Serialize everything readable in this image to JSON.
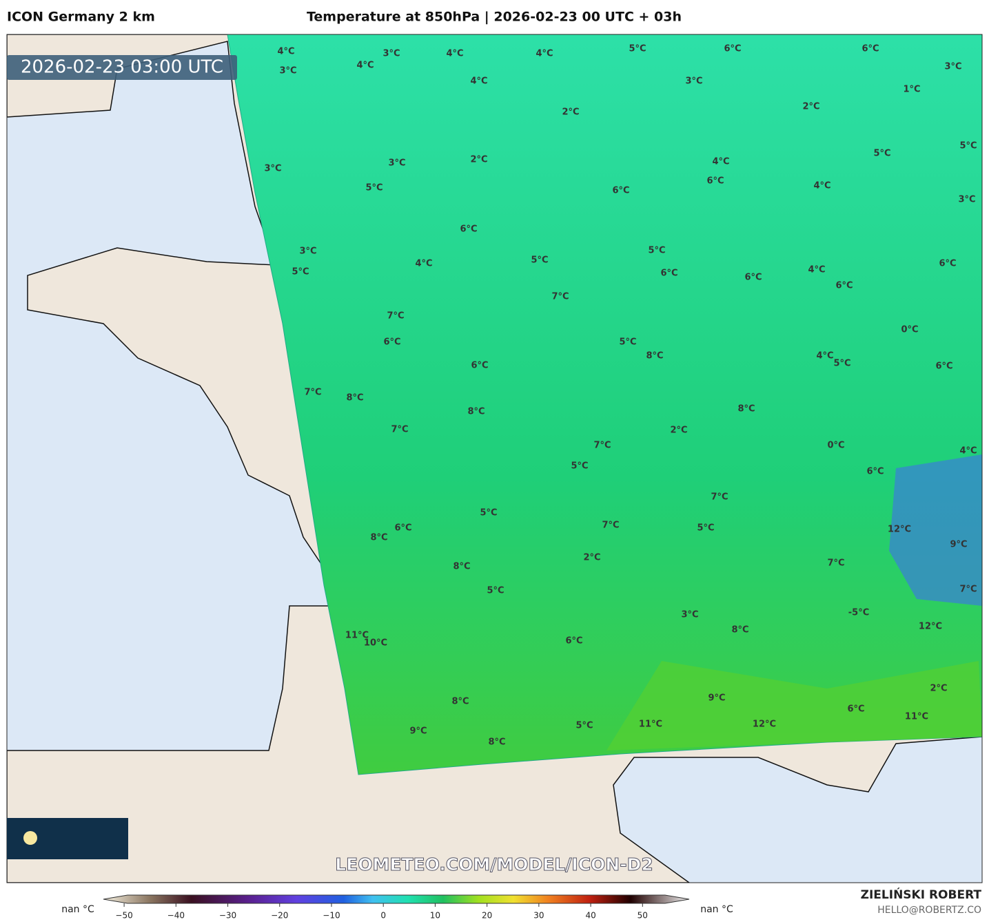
{
  "header": {
    "model": "ICON Germany 2 km",
    "title": "Temperature at 850hPa | 2026-02-23 00 UTC + 03h"
  },
  "timestamp": "2026-02-23 03:00 UTC",
  "watermark": "LEOMETEO.COM/MODEL/ICON-D2",
  "map_labels": [
    "4°C",
    "3°C",
    "4°C",
    "4°C",
    "5°C",
    "6°C",
    "6°C",
    "4°C",
    "3°C",
    "4°C",
    "3°C",
    "3°C",
    "1°C",
    "2°C",
    "2°C",
    "5°C",
    "5°C",
    "3°C",
    "3°C",
    "2°C",
    "4°C",
    "6°C",
    "5°C",
    "6°C",
    "4°C",
    "3°C",
    "6°C",
    "3°C",
    "5°C",
    "4°C",
    "5°C",
    "6°C",
    "5°C",
    "6°C",
    "6°C",
    "4°C",
    "6°C",
    "7°C",
    "7°C",
    "0°C",
    "6°C",
    "5°C",
    "8°C",
    "4°C",
    "5°C",
    "6°C",
    "6°C",
    "7°C",
    "8°C",
    "8°C",
    "8°C",
    "7°C",
    "2°C",
    "0°C",
    "7°C",
    "4°C",
    "5°C",
    "6°C",
    "7°C",
    "5°C",
    "7°C",
    "5°C",
    "12°C",
    "6°C",
    "8°C",
    "9°C",
    "2°C",
    "7°C",
    "8°C",
    "7°C",
    "5°C",
    "3°C",
    "-5°C",
    "12°C",
    "8°C",
    "11°C",
    "10°C",
    "6°C",
    "2°C",
    "9°C",
    "8°C",
    "6°C",
    "11°C",
    "11°C",
    "12°C",
    "5°C",
    "9°C",
    "8°C"
  ],
  "colorbar": {
    "lim": [
      -54,
      59
    ],
    "ticks": [
      {
        "value": -50,
        "label": "−50"
      },
      {
        "value": -40,
        "label": "−40"
      },
      {
        "value": -30,
        "label": "−30"
      },
      {
        "value": -20,
        "label": "−20"
      },
      {
        "value": -10,
        "label": "−10"
      },
      0,
      10,
      20,
      30,
      40,
      50
    ],
    "nan_left": "nan °C",
    "nan_right": "nan °C"
  },
  "footer": {
    "author": "ZIELIŃSKI ROBERT",
    "email": "HELLO@ROBERTZ.CO"
  }
}
